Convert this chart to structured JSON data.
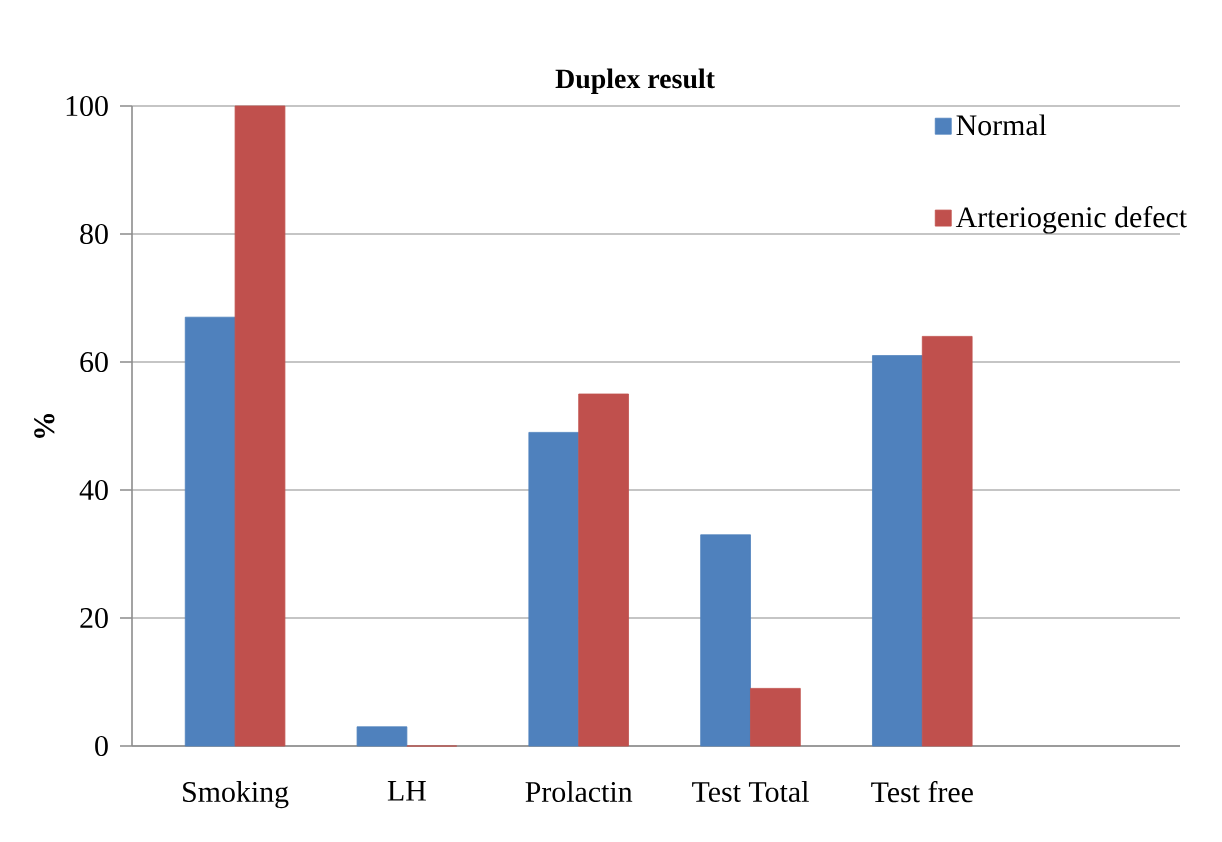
{
  "chart_data": {
    "type": "bar",
    "title": "Duplex result",
    "ylabel": "%",
    "categories": [
      "Smoking",
      "LH",
      "Prolactin",
      "Test Total",
      "Test free"
    ],
    "series": [
      {
        "name": "Normal",
        "color": "#4f81bd",
        "values": [
          67,
          3,
          49,
          33,
          61
        ]
      },
      {
        "name": "Arteriogenic defect",
        "color": "#c0504d",
        "values": [
          100,
          0,
          55,
          9,
          64
        ]
      }
    ],
    "ylim": [
      0,
      100
    ],
    "yticks": [
      0,
      20,
      40,
      60,
      80,
      100
    ],
    "grid": "y",
    "legend": "top right"
  }
}
